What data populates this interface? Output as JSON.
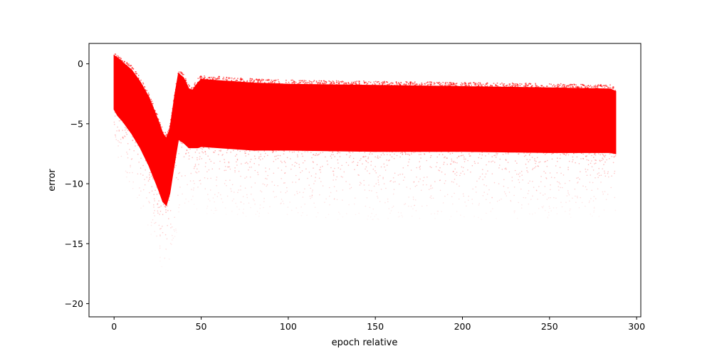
{
  "chart_data": {
    "type": "scatter",
    "title": "",
    "xlabel": "epoch relative",
    "ylabel": "error",
    "xlim": [
      -14.4,
      302.4
    ],
    "ylim": [
      -21.1,
      1.7
    ],
    "x_ticks": [
      0,
      50,
      100,
      150,
      200,
      250,
      300
    ],
    "y_ticks": [
      0,
      -5,
      -10,
      -15,
      -20
    ],
    "x_tick_labels": [
      "0",
      "50",
      "100",
      "150",
      "200",
      "250",
      "300"
    ],
    "y_tick_labels": [
      "0",
      "−5",
      "−10",
      "−15",
      "−20"
    ],
    "grid": false,
    "legend": "none",
    "marker_color": "#ff0000",
    "series": [
      {
        "dense_band": {
          "x": [
            0,
            2,
            5,
            10,
            15,
            20,
            25,
            28,
            30,
            32,
            35,
            37,
            40,
            43,
            45,
            48,
            50,
            60,
            80,
            100,
            150,
            200,
            250,
            285,
            288
          ],
          "upper": [
            0.7,
            0.5,
            0.1,
            -0.5,
            -1.5,
            -2.8,
            -4.6,
            -5.8,
            -6.2,
            -5.5,
            -2.5,
            -0.8,
            -1.2,
            -2.1,
            -2.2,
            -1.6,
            -1.3,
            -1.4,
            -1.6,
            -1.7,
            -1.8,
            -1.9,
            -2.0,
            -2.1,
            -2.3
          ],
          "lower": [
            -3.8,
            -4.3,
            -4.8,
            -5.8,
            -7.0,
            -8.5,
            -10.3,
            -11.5,
            -11.8,
            -10.8,
            -8.0,
            -6.3,
            -6.6,
            -7.0,
            -7.0,
            -7.0,
            -6.9,
            -7.0,
            -7.2,
            -7.2,
            -7.3,
            -7.3,
            -7.4,
            -7.4,
            -7.5
          ]
        },
        "sparse_lower": {
          "x": [
            0,
            5,
            10,
            20,
            25,
            28,
            30,
            33,
            37,
            40,
            45,
            50,
            100,
            200,
            288
          ],
          "lower": [
            -8.0,
            -9.5,
            -11.0,
            -14.0,
            -16.0,
            -17.5,
            -17.8,
            -16.5,
            -13.5,
            -12.5,
            -12.0,
            -12.5,
            -13.0,
            -13.0,
            -12.8
          ]
        }
      }
    ]
  }
}
